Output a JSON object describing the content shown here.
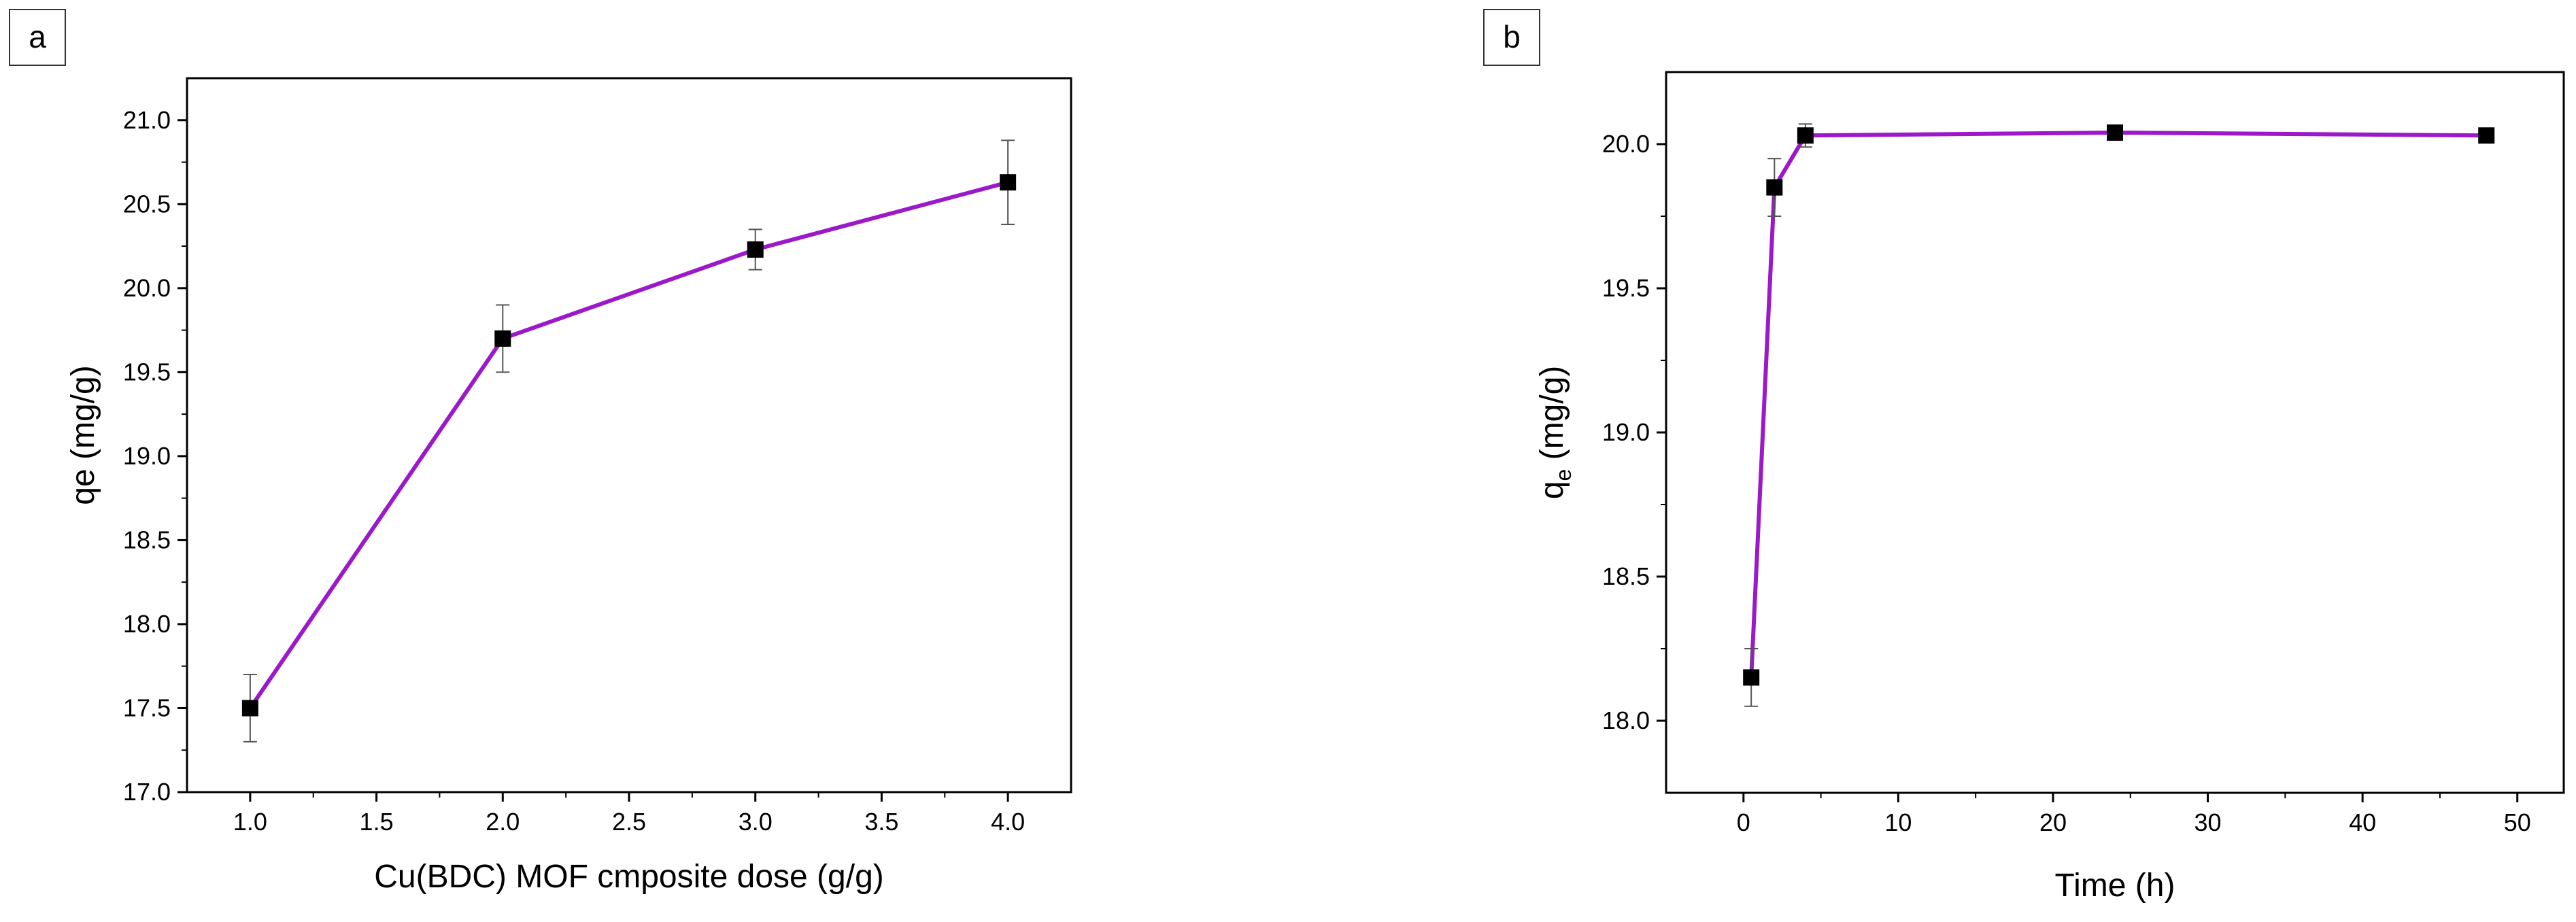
{
  "chart_data": [
    {
      "type": "line",
      "panel_label": "a",
      "xlabel": "Cu(BDC) MOF cmposite dose  (g/g)",
      "ylabel": "qe (mg/g)",
      "ylabel_sub": "",
      "xlim": [
        0.75,
        4.25
      ],
      "ylim": [
        17.0,
        21.25
      ],
      "xticks": [
        1.0,
        1.5,
        2.0,
        2.5,
        3.0,
        3.5,
        4.0
      ],
      "xtick_labels": [
        "1.0",
        "1.5",
        "2.0",
        "2.5",
        "3.0",
        "3.5",
        "4.0"
      ],
      "yticks": [
        17.0,
        17.5,
        18.0,
        18.5,
        19.0,
        19.5,
        20.0,
        20.5,
        21.0
      ],
      "ytick_labels": [
        "17.0",
        "17.5",
        "18.0",
        "18.5",
        "19.0",
        "19.5",
        "20.0",
        "20.5",
        "21.0"
      ],
      "line_color": "#9b19c8",
      "marker_color": "#000000",
      "points": [
        {
          "x": 1.0,
          "y": 17.5,
          "err": 0.2
        },
        {
          "x": 2.0,
          "y": 19.7,
          "err": 0.2
        },
        {
          "x": 3.0,
          "y": 20.23,
          "err": 0.12
        },
        {
          "x": 4.0,
          "y": 20.63,
          "err": 0.25
        }
      ]
    },
    {
      "type": "line",
      "panel_label": "b",
      "xlabel": "Time (h)",
      "ylabel": "q",
      "ylabel_sub": "e",
      "ylabel_suffix": " (mg/g)",
      "xlim": [
        -5,
        53
      ],
      "ylim": [
        17.75,
        20.25
      ],
      "xticks": [
        0,
        10,
        20,
        30,
        40,
        50
      ],
      "xtick_labels": [
        "0",
        "10",
        "20",
        "30",
        "40",
        "50"
      ],
      "yticks": [
        18.0,
        18.5,
        19.0,
        19.5,
        20.0
      ],
      "ytick_labels": [
        "18.0",
        "18.5",
        "19.0",
        "19.5",
        "20.0"
      ],
      "line_color": "#9b19c8",
      "marker_color": "#000000",
      "points": [
        {
          "x": 0.5,
          "y": 18.15,
          "err": 0.1
        },
        {
          "x": 2,
          "y": 19.85,
          "err": 0.1
        },
        {
          "x": 4,
          "y": 20.03,
          "err": 0.04
        },
        {
          "x": 24,
          "y": 20.04,
          "err": 0.01
        },
        {
          "x": 48,
          "y": 20.03,
          "err": 0.01
        }
      ]
    }
  ]
}
